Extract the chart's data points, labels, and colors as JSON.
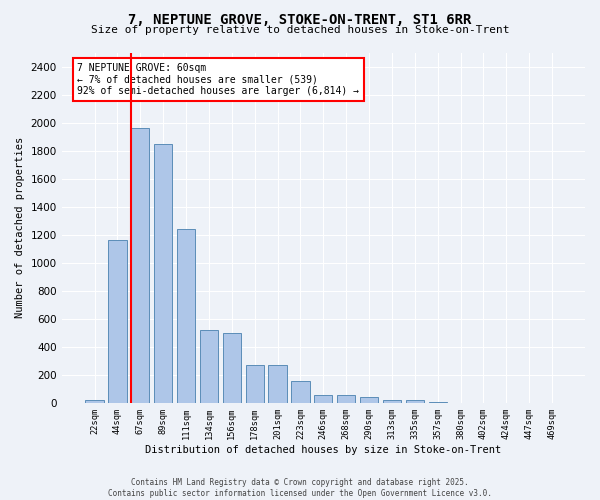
{
  "title_line1": "7, NEPTUNE GROVE, STOKE-ON-TRENT, ST1 6RR",
  "title_line2": "Size of property relative to detached houses in Stoke-on-Trent",
  "xlabel": "Distribution of detached houses by size in Stoke-on-Trent",
  "ylabel": "Number of detached properties",
  "bins": [
    "22sqm",
    "44sqm",
    "67sqm",
    "89sqm",
    "111sqm",
    "134sqm",
    "156sqm",
    "178sqm",
    "201sqm",
    "223sqm",
    "246sqm",
    "268sqm",
    "290sqm",
    "313sqm",
    "335sqm",
    "357sqm",
    "380sqm",
    "402sqm",
    "424sqm",
    "447sqm",
    "469sqm"
  ],
  "values": [
    25,
    1160,
    1960,
    1850,
    1240,
    520,
    500,
    270,
    270,
    155,
    60,
    55,
    40,
    25,
    20,
    5,
    3,
    2,
    1,
    1,
    0
  ],
  "bar_color": "#aec6e8",
  "bar_edge_color": "#5b8db8",
  "vline_color": "red",
  "annotation_text": "7 NEPTUNE GROVE: 60sqm\n← 7% of detached houses are smaller (539)\n92% of semi-detached houses are larger (6,814) →",
  "annotation_box_color": "white",
  "annotation_box_edge_color": "red",
  "ylim": [
    0,
    2500
  ],
  "yticks": [
    0,
    200,
    400,
    600,
    800,
    1000,
    1200,
    1400,
    1600,
    1800,
    2000,
    2200,
    2400
  ],
  "background_color": "#eef2f8",
  "grid_color": "white",
  "footer_line1": "Contains HM Land Registry data © Crown copyright and database right 2025.",
  "footer_line2": "Contains public sector information licensed under the Open Government Licence v3.0."
}
